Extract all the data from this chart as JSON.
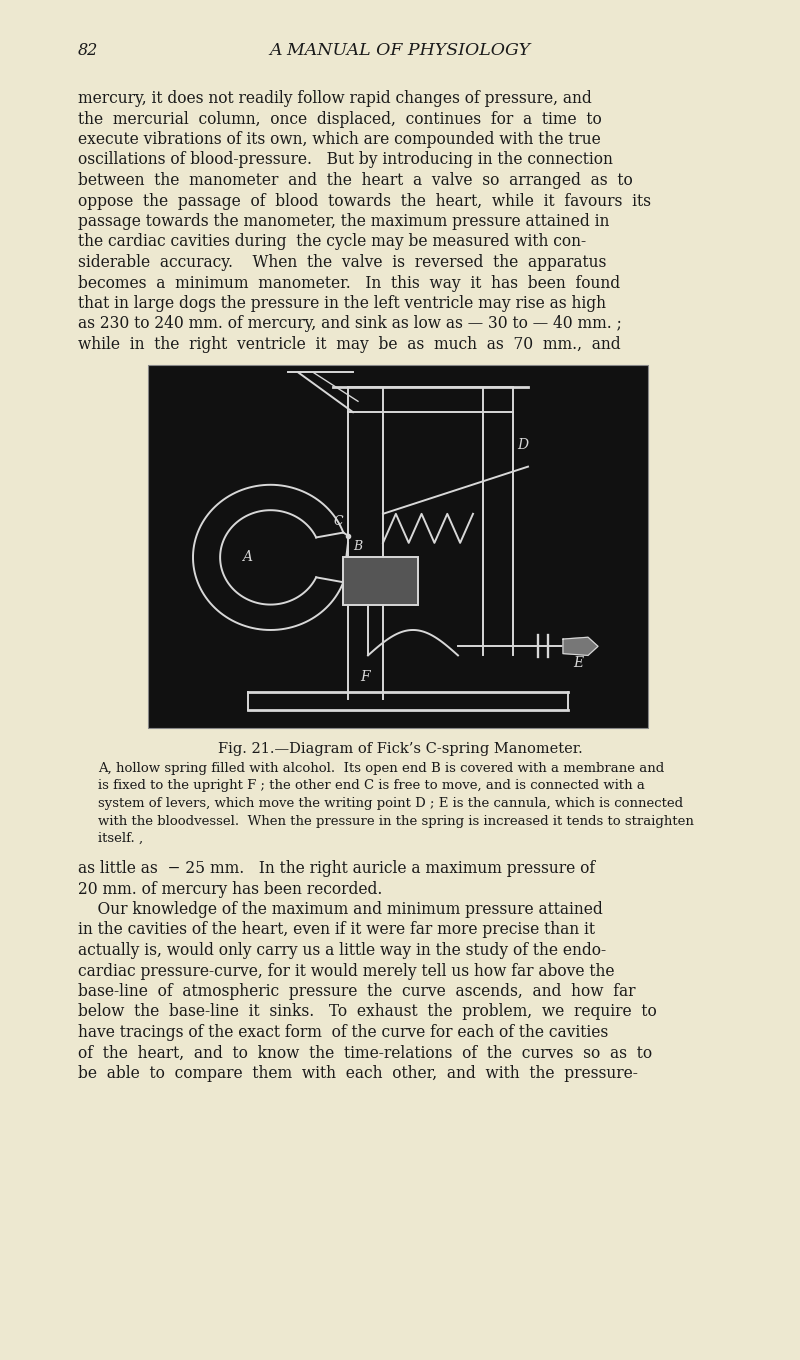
{
  "page_number": "82",
  "header": "A MANUAL OF PHYSIOLOGY",
  "background_color": "#ede8d0",
  "text_color": "#1a1a1a",
  "para1_lines": [
    "mercury, it does not readily follow rapid changes of pressure, and",
    "the  mercurial  column,  once  displaced,  continues  for  a  time  to",
    "execute vibrations of its own, which are compounded with the true",
    "oscillations of blood-pressure.   But by introducing in the connection",
    "between  the  manometer  and  the  heart  a  valve  so  arranged  as  to",
    "oppose  the  passage  of  blood  towards  the  heart,  while  it  favours  its",
    "passage towards the manometer, the maximum pressure attained in",
    "the cardiac cavities during  the cycle may be measured with con-",
    "siderable  accuracy.    When  the  valve  is  reversed  the  apparatus",
    "becomes  a  minimum  manometer.   In  this  way  it  has  been  found",
    "that in large dogs the pressure in the left ventricle may rise as high",
    "as 230 to 240 mm. of mercury, and sink as low as — 30 to — 40 mm. ;",
    "while  in  the  right  ventricle  it  may  be  as  much  as  70  mm.,  and"
  ],
  "fig_caption_title": "Fig. 21.—Diagram of Fick’s C-spring Manometer.",
  "fig_caption_lines": [
    "A, hollow spring filled with alcohol.  Its open end B is covered with a membrane and",
    "is fixed to the upright F ; the other end C is free to move, and is connected with a",
    "system of levers, which move the writing point D ; E is the cannula, which is connected",
    "with the bloodvessel.  When the pressure in the spring is increased it tends to straighten",
    "itself. ,"
  ],
  "para2_lines": [
    "as little as  − 25 mm.   In the right auricle a maximum pressure of",
    "20 mm. of mercury has been recorded.",
    "    Our knowledge of the maximum and minimum pressure attained",
    "in the cavities of the heart, even if it were far more precise than it",
    "actually is, would only carry us a little way in the study of the endo-",
    "cardiac pressure-curve, for it would merely tell us how far above the",
    "base-line  of  atmospheric  pressure  the  curve  ascends,  and  how  far",
    "below  the  base-line  it  sinks.   To  exhaust  the  problem,  we  require  to",
    "have tracings of the exact form  of the curve for each of the cavities",
    "of  the  heart,  and  to  know  the  time-relations  of  the  curves  so  as  to",
    "be  able  to  compare  them  with  each  other,  and  with  the  pressure-"
  ],
  "image_bg": "#111111",
  "line_color": "#d8d8d8"
}
